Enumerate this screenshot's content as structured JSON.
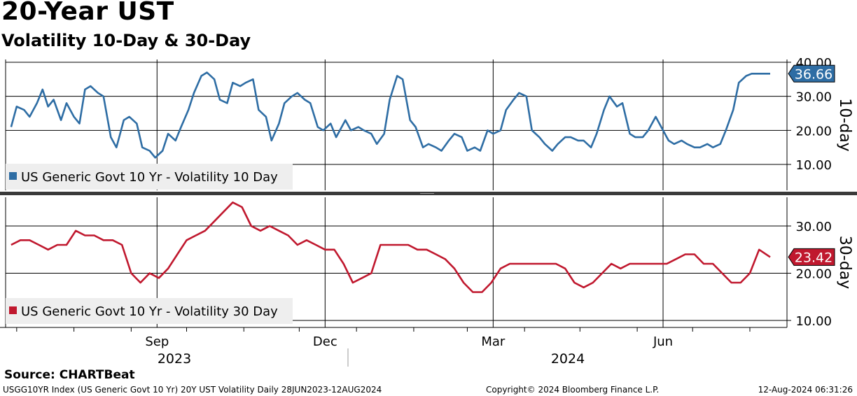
{
  "header": {
    "title": "20-Year UST",
    "subtitle": "Volatility 10-Day & 30-Day"
  },
  "colors": {
    "series_10d": "#2e6da4",
    "series_30d": "#c0182e",
    "legend_bg": "#eeeeee",
    "divider": "#3a3a3a"
  },
  "chart_data": [
    {
      "type": "line",
      "panel": "top",
      "ylabel": "10-day",
      "ylim": [
        2,
        41
      ],
      "y_ticks": [
        10,
        20,
        30,
        40
      ],
      "y_tick_labels": [
        "10.00",
        "20.00",
        "30.00",
        "40.00"
      ],
      "legend": "US Generic Govt 10 Yr - Volatility 10 Day",
      "legend_position": "bottom-left",
      "last_value_label": "36.66",
      "grid": true,
      "series": [
        {
          "name": "US Generic Govt 10 Yr - Volatility 10 Day",
          "x": [
            "2023-06-28",
            "2023-07-01",
            "2023-07-05",
            "2023-07-08",
            "2023-07-12",
            "2023-07-15",
            "2023-07-18",
            "2023-07-21",
            "2023-07-25",
            "2023-07-28",
            "2023-08-01",
            "2023-08-04",
            "2023-08-07",
            "2023-08-10",
            "2023-08-14",
            "2023-08-17",
            "2023-08-21",
            "2023-08-24",
            "2023-08-28",
            "2023-08-31",
            "2023-09-04",
            "2023-09-07",
            "2023-09-11",
            "2023-09-14",
            "2023-09-18",
            "2023-09-21",
            "2023-09-25",
            "2023-09-28",
            "2023-10-02",
            "2023-10-05",
            "2023-10-09",
            "2023-10-12",
            "2023-10-16",
            "2023-10-19",
            "2023-10-23",
            "2023-10-26",
            "2023-10-30",
            "2023-11-02",
            "2023-11-06",
            "2023-11-09",
            "2023-11-13",
            "2023-11-16",
            "2023-11-20",
            "2023-11-23",
            "2023-11-27",
            "2023-11-30",
            "2023-12-04",
            "2023-12-07",
            "2023-12-11",
            "2023-12-14",
            "2023-12-18",
            "2023-12-21",
            "2023-12-26",
            "2023-12-29",
            "2024-01-02",
            "2024-01-05",
            "2024-01-09",
            "2024-01-12",
            "2024-01-16",
            "2024-01-19",
            "2024-01-23",
            "2024-01-26",
            "2024-01-30",
            "2024-02-02",
            "2024-02-06",
            "2024-02-09",
            "2024-02-13",
            "2024-02-16",
            "2024-02-20",
            "2024-02-23",
            "2024-02-27",
            "2024-03-01",
            "2024-03-05",
            "2024-03-08",
            "2024-03-12",
            "2024-03-15",
            "2024-03-19",
            "2024-03-22",
            "2024-03-26",
            "2024-03-29",
            "2024-04-02",
            "2024-04-05",
            "2024-04-09",
            "2024-04-12",
            "2024-04-16",
            "2024-04-19",
            "2024-04-23",
            "2024-04-26",
            "2024-04-30",
            "2024-05-03",
            "2024-05-07",
            "2024-05-10",
            "2024-05-14",
            "2024-05-17",
            "2024-05-21",
            "2024-05-24",
            "2024-05-28",
            "2024-05-31",
            "2024-06-04",
            "2024-06-07",
            "2024-06-11",
            "2024-06-14",
            "2024-06-18",
            "2024-06-21",
            "2024-06-25",
            "2024-06-28",
            "2024-07-02",
            "2024-07-05",
            "2024-07-09",
            "2024-07-12",
            "2024-07-16",
            "2024-07-19",
            "2024-07-23",
            "2024-07-26",
            "2024-07-30",
            "2024-08-02",
            "2024-08-05",
            "2024-08-08",
            "2024-08-12"
          ],
          "values": [
            21,
            27,
            26,
            24,
            28,
            32,
            27,
            29,
            23,
            28,
            24,
            22,
            32,
            33,
            31,
            30,
            18,
            15,
            23,
            24,
            22,
            15,
            14,
            12,
            14,
            19,
            17,
            21,
            26,
            31,
            36,
            37,
            35,
            29,
            28,
            34,
            33,
            34,
            35,
            26,
            24,
            17,
            22,
            28,
            30,
            31,
            29,
            28,
            21,
            20,
            22,
            18,
            23,
            20,
            21,
            20,
            19,
            16,
            19,
            29,
            36,
            35,
            23,
            21,
            15,
            16,
            15,
            14,
            17,
            19,
            18,
            14,
            15,
            14,
            20,
            19,
            20,
            26,
            29,
            31,
            30,
            20,
            18,
            16,
            14,
            16,
            18,
            18,
            17,
            17,
            15,
            19,
            26,
            30,
            27,
            28,
            19,
            18,
            18,
            20,
            24,
            21,
            17,
            16,
            17,
            16,
            15,
            15,
            16,
            15,
            16,
            20,
            26,
            34,
            36,
            36.66,
            36.66,
            36.66,
            36.66
          ]
        }
      ]
    },
    {
      "type": "line",
      "panel": "bottom",
      "ylabel": "30-day",
      "ylim": [
        9,
        37
      ],
      "y_ticks": [
        10,
        20,
        30
      ],
      "y_tick_labels": [
        "10.00",
        "20.00",
        "30.00"
      ],
      "legend": "US Generic Govt 10 Yr - Volatility 30 Day",
      "legend_position": "bottom-left",
      "last_value_label": "23.42",
      "grid": true,
      "series": [
        {
          "name": "US Generic Govt 10 Yr - Volatility 30 Day",
          "x": [
            "2023-06-28",
            "2023-07-03",
            "2023-07-08",
            "2023-07-13",
            "2023-07-18",
            "2023-07-23",
            "2023-07-28",
            "2023-08-02",
            "2023-08-07",
            "2023-08-12",
            "2023-08-17",
            "2023-08-22",
            "2023-08-27",
            "2023-09-01",
            "2023-09-06",
            "2023-09-11",
            "2023-09-16",
            "2023-09-21",
            "2023-09-26",
            "2023-10-01",
            "2023-10-06",
            "2023-10-11",
            "2023-10-16",
            "2023-10-21",
            "2023-10-26",
            "2023-10-31",
            "2023-11-05",
            "2023-11-10",
            "2023-11-15",
            "2023-11-20",
            "2023-11-25",
            "2023-11-30",
            "2023-12-05",
            "2023-12-10",
            "2023-12-15",
            "2023-12-20",
            "2023-12-25",
            "2023-12-30",
            "2024-01-04",
            "2024-01-09",
            "2024-01-14",
            "2024-01-19",
            "2024-01-24",
            "2024-01-29",
            "2024-02-03",
            "2024-02-08",
            "2024-02-13",
            "2024-02-18",
            "2024-02-23",
            "2024-02-28",
            "2024-03-04",
            "2024-03-09",
            "2024-03-14",
            "2024-03-19",
            "2024-03-24",
            "2024-03-29",
            "2024-04-03",
            "2024-04-08",
            "2024-04-13",
            "2024-04-18",
            "2024-04-23",
            "2024-04-28",
            "2024-05-03",
            "2024-05-08",
            "2024-05-13",
            "2024-05-18",
            "2024-05-23",
            "2024-05-28",
            "2024-06-02",
            "2024-06-07",
            "2024-06-12",
            "2024-06-17",
            "2024-06-22",
            "2024-06-27",
            "2024-07-02",
            "2024-07-07",
            "2024-07-12",
            "2024-07-17",
            "2024-07-22",
            "2024-07-27",
            "2024-08-01",
            "2024-08-06",
            "2024-08-12"
          ],
          "values": [
            26,
            27,
            27,
            26,
            25,
            26,
            26,
            29,
            28,
            28,
            27,
            27,
            26,
            20,
            18,
            20,
            19,
            21,
            24,
            27,
            28,
            29,
            31,
            33,
            35,
            34,
            30,
            29,
            30,
            29,
            28,
            26,
            27,
            26,
            25,
            25,
            22,
            18,
            19,
            20,
            26,
            26,
            26,
            26,
            25,
            25,
            24,
            23,
            21,
            18,
            16,
            16,
            18,
            21,
            22,
            22,
            22,
            22,
            22,
            22,
            21,
            18,
            17,
            18,
            20,
            22,
            21,
            22,
            22,
            22,
            22,
            22,
            23,
            24,
            24,
            22,
            22,
            20,
            18,
            18,
            20,
            25,
            23.42
          ]
        }
      ]
    }
  ],
  "x_axis": {
    "months": [
      {
        "label": "Sep",
        "date": "2023-09-15"
      },
      {
        "label": "Dec",
        "date": "2023-12-15"
      },
      {
        "label": "Mar",
        "date": "2024-03-15"
      },
      {
        "label": "Jun",
        "date": "2024-06-15"
      }
    ],
    "years": [
      {
        "label": "2023",
        "date": "2023-09-20"
      },
      {
        "label": "2024",
        "date": "2024-04-20"
      }
    ]
  },
  "footer": {
    "source": "Source: CHARTBeat",
    "ticker_line": "USGG10YR Index (US Generic Govt 10 Yr) 20Y UST Volatility  Daily 28JUN2023-12AUG2024",
    "copyright": "Copyright© 2024 Bloomberg Finance L.P.",
    "timestamp": "12-Aug-2024 06:31:26"
  }
}
